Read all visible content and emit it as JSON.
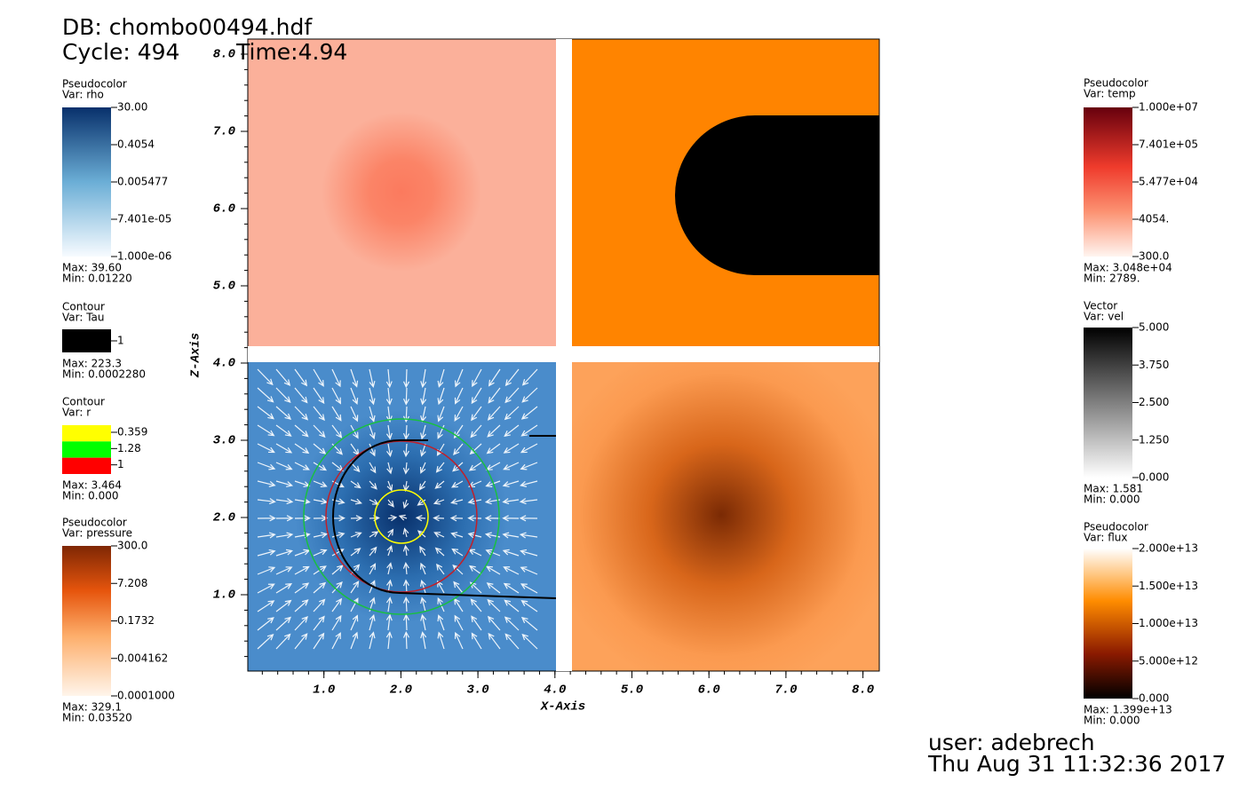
{
  "header": {
    "db": "DB: chombo00494.hdf",
    "cycle": "Cycle: 494",
    "time": "Time:4.94"
  },
  "axes": {
    "x_label": "X-Axis",
    "y_label": "Z-Axis",
    "xlim": [
      0,
      8.2
    ],
    "ylim": [
      0,
      8.2
    ],
    "xticks": [
      {
        "value": 1,
        "label": "1.0"
      },
      {
        "value": 2,
        "label": "2.0"
      },
      {
        "value": 3,
        "label": "3.0"
      },
      {
        "value": 4,
        "label": "4.0"
      },
      {
        "value": 5,
        "label": "5.0"
      },
      {
        "value": 6,
        "label": "6.0"
      },
      {
        "value": 7,
        "label": "7.0"
      },
      {
        "value": 8,
        "label": "8.0"
      }
    ],
    "yticks": [
      {
        "value": 1,
        "label": "1.0"
      },
      {
        "value": 2,
        "label": "2.0"
      },
      {
        "value": 3,
        "label": "3.0"
      },
      {
        "value": 4,
        "label": "4.0"
      },
      {
        "value": 5,
        "label": "5.0"
      },
      {
        "value": 6,
        "label": "6.0"
      },
      {
        "value": 7,
        "label": "7.0"
      },
      {
        "value": 8,
        "label": "8.0"
      }
    ]
  },
  "legends": [
    {
      "title": "Pseudocolor",
      "var": "Var: rho",
      "labels": [
        "30.00",
        "0.4054",
        "0.005477",
        "7.401e-05",
        "1.000e-06"
      ],
      "max": "Max:  39.60",
      "min": "Min:  0.01220"
    },
    {
      "title": "Contour",
      "var": "Var: Tau",
      "labels": [
        "1"
      ],
      "max": "Max:  223.3",
      "min": "Min:  0.0002280"
    },
    {
      "title": "Contour",
      "var": "Var: r",
      "labels": [
        "0.359",
        "1.28",
        "1"
      ],
      "max": "Max:  3.464",
      "min": "Min:  0.000"
    },
    {
      "title": "Pseudocolor",
      "var": "Var: pressure",
      "labels": [
        "300.0",
        "7.208",
        "0.1732",
        "0.004162",
        "0.0001000"
      ],
      "max": "Max:  329.1",
      "min": "Min:  0.03520"
    },
    {
      "title": "Pseudocolor",
      "var": "Var: temp",
      "labels": [
        "1.000e+07",
        "7.401e+05",
        "5.477e+04",
        "4054.",
        "300.0"
      ],
      "max": "Max:  3.048e+04",
      "min": "Min:  2789."
    },
    {
      "title": "Vector",
      "var": "Var: vel",
      "labels": [
        "5.000",
        "3.750",
        "2.500",
        "1.250",
        "0.000"
      ],
      "max": "Max:  1.581",
      "min": "Min:  0.000"
    },
    {
      "title": "Pseudocolor",
      "var": "Var: flux",
      "labels": [
        "2.000e+13",
        "1.500e+13",
        "1.000e+13",
        "5.000e+12",
        "0.000"
      ],
      "max": "Max:  1.399e+13",
      "min": "Min:  0.000"
    }
  ],
  "footer": {
    "user": "user: adebrech",
    "date": "Thu Aug 31 11:32:36 2017"
  }
}
